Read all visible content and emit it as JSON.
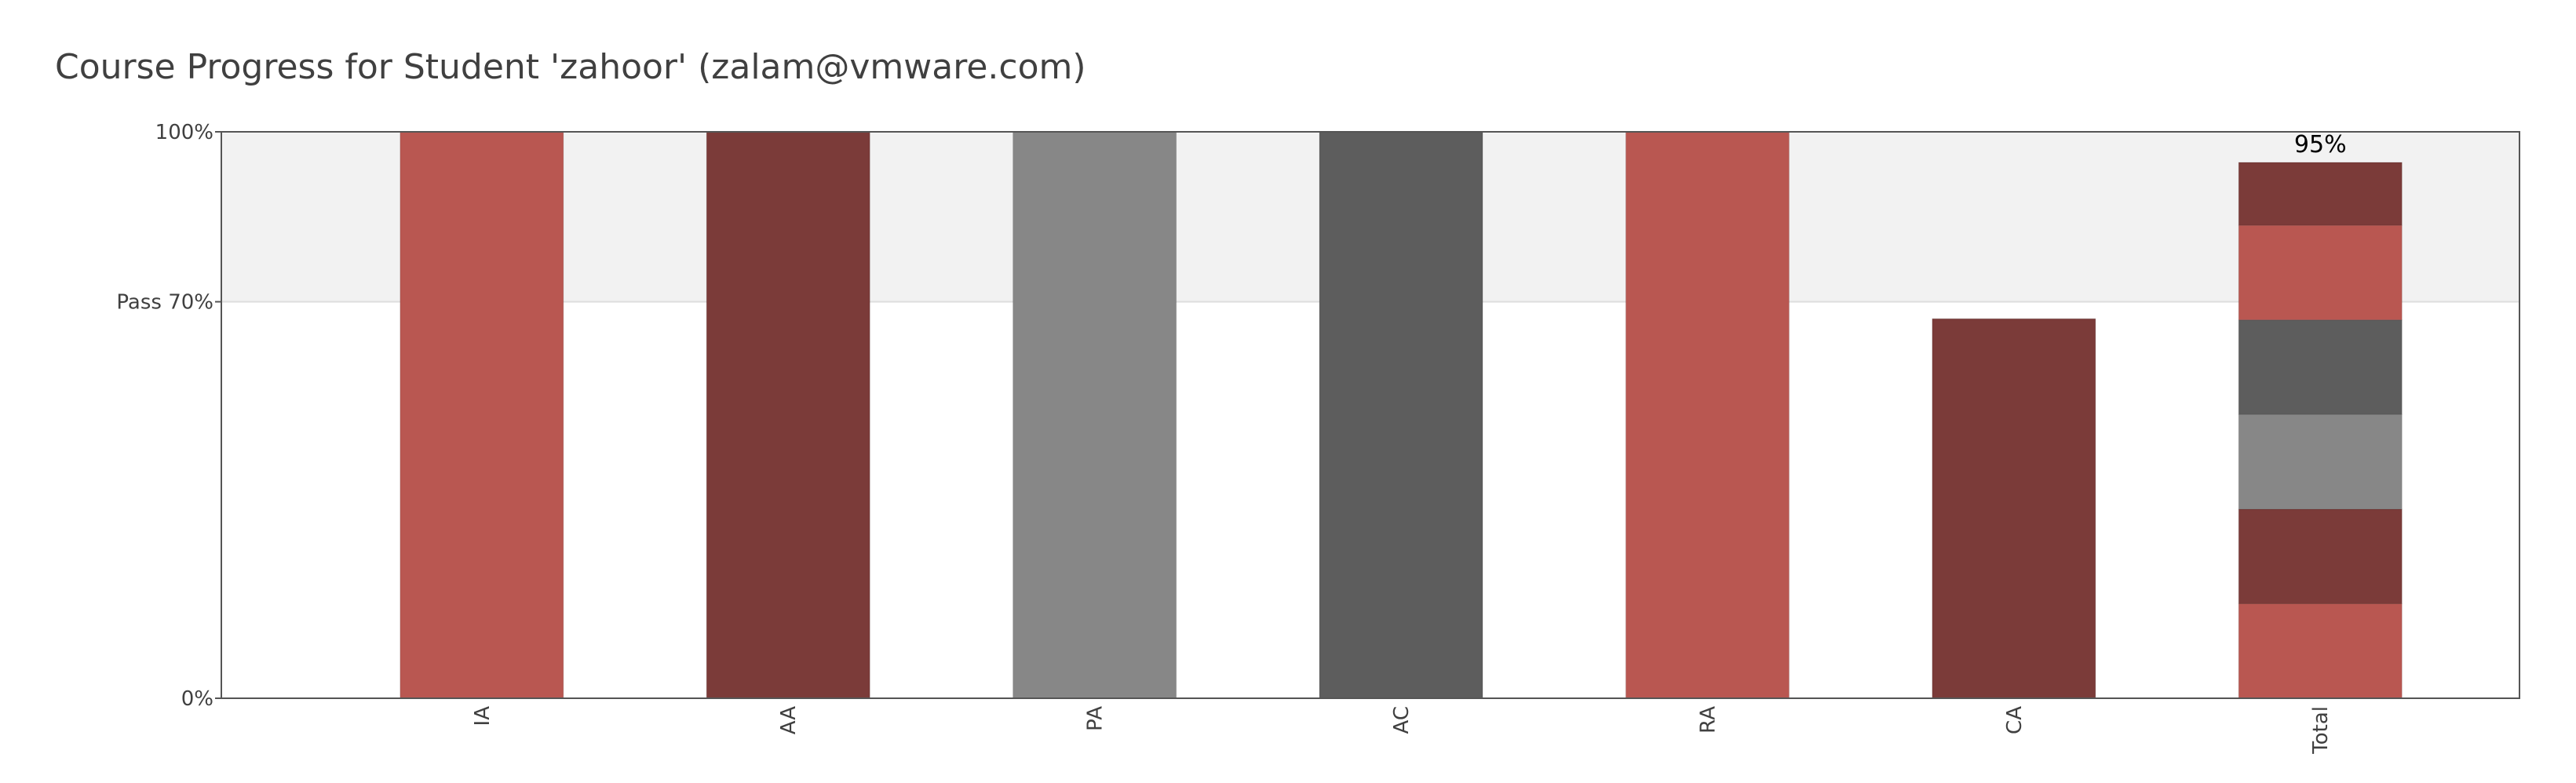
{
  "page": {
    "title": "Course Progress for Student 'zahoor' (zalam@vmware.com)"
  },
  "chart_data": {
    "type": "bar",
    "title": "Course Progress for Student 'zahoor' (zalam@vmware.com)",
    "categories": [
      "IA",
      "AA",
      "PA",
      "AC",
      "RA",
      "CA",
      "Total"
    ],
    "values": [
      100,
      100,
      100,
      100,
      100,
      67,
      95
    ],
    "bar_colors": [
      "#b95751",
      "#7b3b39",
      "#878787",
      "#5d5d5d",
      "#b95751",
      "#7b3b39"
    ],
    "total_segments": [
      {
        "category": "IA",
        "value": 16.7,
        "color": "#b95751"
      },
      {
        "category": "AA",
        "value": 16.7,
        "color": "#7b3b39"
      },
      {
        "category": "PA",
        "value": 16.7,
        "color": "#878787"
      },
      {
        "category": "AC",
        "value": 16.7,
        "color": "#5d5d5d"
      },
      {
        "category": "RA",
        "value": 16.7,
        "color": "#b95751"
      },
      {
        "category": "CA",
        "value": 11.1,
        "color": "#7b3b39"
      }
    ],
    "total_label": "95%",
    "ylim": [
      0,
      100
    ],
    "y_ticks": [
      {
        "value": 0,
        "label": "0%"
      },
      {
        "value": 70,
        "label": "Pass 70%"
      },
      {
        "value": 100,
        "label": "100%"
      }
    ],
    "pass_threshold": 70,
    "pass_band_color": "#f2f2f2",
    "grid": false,
    "legend": "none"
  }
}
